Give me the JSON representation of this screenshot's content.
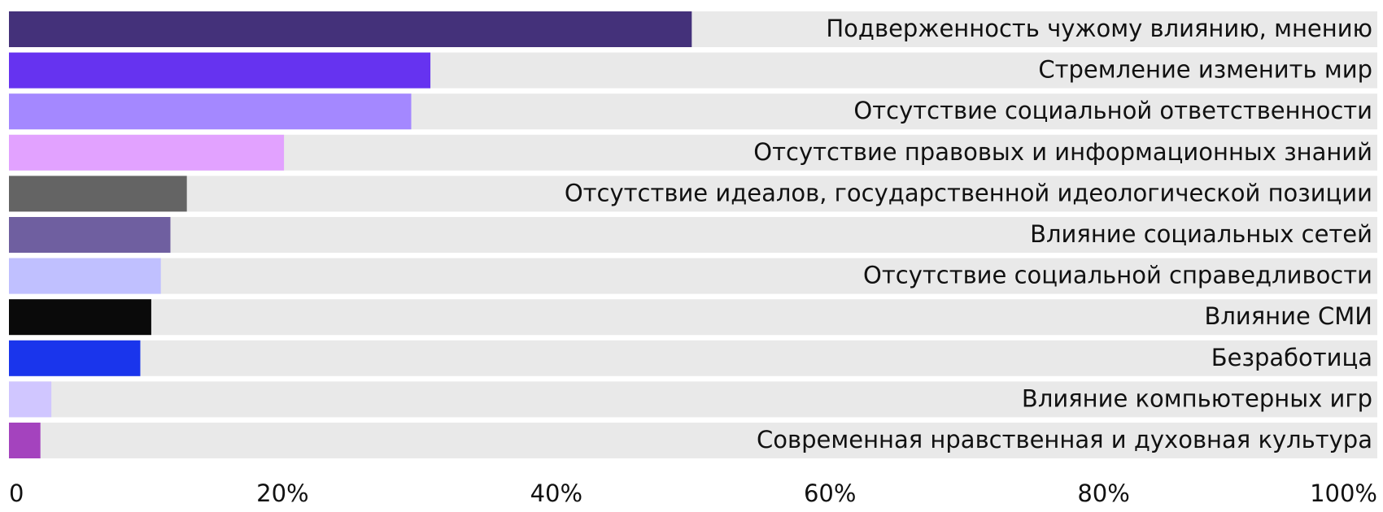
{
  "chart_data": {
    "type": "barh",
    "categories": [
      "Подверженность чужому влиянию, мнению",
      "Стремление изменить мир",
      "Отсутствие социальной ответственности",
      "Отсутствие правовых и информационных знаний",
      "Отсутствие идеалов, государственной идеологической позиции",
      "Влияние социальных сетей",
      "Отсутствие социальной справедливости",
      "Влияние СМИ",
      "Безработица",
      "Влияние компьютерных игр",
      "Современная нравственная и духовная культура"
    ],
    "values": [
      49.9,
      30.8,
      29.4,
      20.1,
      13.0,
      11.8,
      11.1,
      10.4,
      9.6,
      3.1,
      2.3
    ],
    "colors": [
      "#44317a",
      "#6633f0",
      "#a488ff",
      "#e2a2ff",
      "#646464",
      "#6f5fa0",
      "#c0c0ff",
      "#0a0a0a",
      "#1a35ec",
      "#d0c6ff",
      "#a443be"
    ],
    "track_color": "#e9e9e9",
    "xlim": [
      0,
      100
    ],
    "xticks": [
      0,
      {
        "value": 20,
        "label": "20%"
      },
      {
        "value": 40,
        "label": "40%"
      },
      {
        "value": 60,
        "label": "60%"
      },
      {
        "value": 80,
        "label": "80%"
      },
      {
        "value": 100,
        "label": "100%"
      }
    ]
  }
}
